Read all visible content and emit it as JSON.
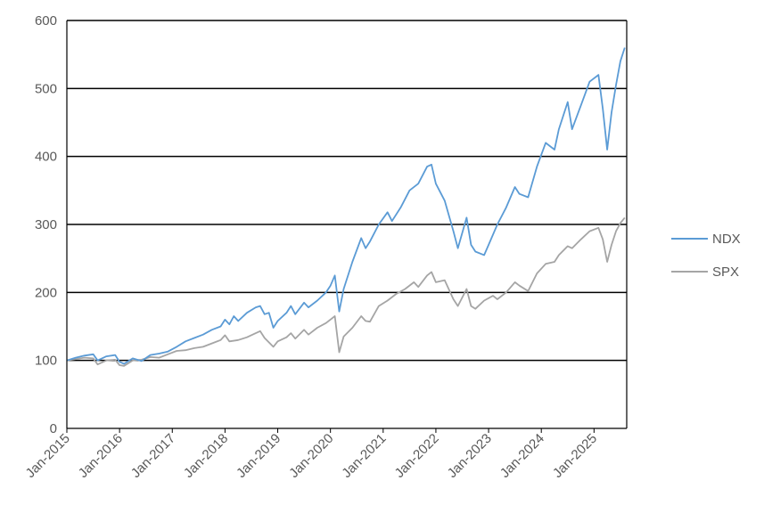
{
  "chart_data": {
    "type": "line",
    "title": "",
    "xlabel": "",
    "ylabel": "",
    "ylim": [
      0,
      600
    ],
    "xlim": [
      "2015-01",
      "2025-08"
    ],
    "grid": "horizontal",
    "legend_position": "right",
    "y_ticks": [
      "0",
      "100",
      "200",
      "300",
      "400",
      "500",
      "600"
    ],
    "x_ticks": [
      "Jan-2015",
      "Jan-2016",
      "Jan-2017",
      "Jan-2018",
      "Jan-2019",
      "Jan-2020",
      "Jan-2021",
      "Jan-2022",
      "Jan-2023",
      "Jan-2024",
      "Jan-2025"
    ],
    "x_tick_dates": [
      "2015-01",
      "2016-01",
      "2017-01",
      "2018-01",
      "2019-01",
      "2020-01",
      "2021-01",
      "2022-01",
      "2023-01",
      "2024-01",
      "2025-01"
    ],
    "series": [
      {
        "name": "NDX",
        "color": "#5B9BD5",
        "points": [
          [
            "2015-01",
            100
          ],
          [
            "2015-03",
            104
          ],
          [
            "2015-05",
            107
          ],
          [
            "2015-07",
            109
          ],
          [
            "2015-08",
            100
          ],
          [
            "2015-10",
            106
          ],
          [
            "2015-12",
            108
          ],
          [
            "2016-01",
            98
          ],
          [
            "2016-02",
            95
          ],
          [
            "2016-04",
            103
          ],
          [
            "2016-06",
            99
          ],
          [
            "2016-08",
            108
          ],
          [
            "2016-10",
            110
          ],
          [
            "2016-12",
            113
          ],
          [
            "2017-02",
            120
          ],
          [
            "2017-04",
            128
          ],
          [
            "2017-06",
            133
          ],
          [
            "2017-08",
            138
          ],
          [
            "2017-10",
            145
          ],
          [
            "2017-12",
            150
          ],
          [
            "2018-01",
            160
          ],
          [
            "2018-02",
            153
          ],
          [
            "2018-03",
            165
          ],
          [
            "2018-04",
            158
          ],
          [
            "2018-06",
            170
          ],
          [
            "2018-08",
            178
          ],
          [
            "2018-09",
            180
          ],
          [
            "2018-10",
            168
          ],
          [
            "2018-11",
            170
          ],
          [
            "2018-12",
            148
          ],
          [
            "2019-01",
            158
          ],
          [
            "2019-03",
            170
          ],
          [
            "2019-04",
            180
          ],
          [
            "2019-05",
            168
          ],
          [
            "2019-07",
            185
          ],
          [
            "2019-08",
            178
          ],
          [
            "2019-10",
            188
          ],
          [
            "2019-12",
            200
          ],
          [
            "2020-01",
            210
          ],
          [
            "2020-02",
            225
          ],
          [
            "2020-03",
            172
          ],
          [
            "2020-04",
            205
          ],
          [
            "2020-06",
            245
          ],
          [
            "2020-08",
            280
          ],
          [
            "2020-09",
            265
          ],
          [
            "2020-10",
            275
          ],
          [
            "2020-12",
            300
          ],
          [
            "2021-02",
            318
          ],
          [
            "2021-03",
            305
          ],
          [
            "2021-05",
            325
          ],
          [
            "2021-07",
            350
          ],
          [
            "2021-09",
            360
          ],
          [
            "2021-11",
            385
          ],
          [
            "2021-12",
            388
          ],
          [
            "2022-01",
            360
          ],
          [
            "2022-03",
            335
          ],
          [
            "2022-05",
            290
          ],
          [
            "2022-06",
            265
          ],
          [
            "2022-08",
            310
          ],
          [
            "2022-09",
            270
          ],
          [
            "2022-10",
            260
          ],
          [
            "2022-12",
            255
          ],
          [
            "2023-01",
            270
          ],
          [
            "2023-03",
            300
          ],
          [
            "2023-05",
            325
          ],
          [
            "2023-07",
            355
          ],
          [
            "2023-08",
            345
          ],
          [
            "2023-10",
            340
          ],
          [
            "2023-12",
            385
          ],
          [
            "2024-02",
            420
          ],
          [
            "2024-04",
            410
          ],
          [
            "2024-05",
            440
          ],
          [
            "2024-07",
            480
          ],
          [
            "2024-08",
            440
          ],
          [
            "2024-10",
            475
          ],
          [
            "2024-12",
            510
          ],
          [
            "2025-02",
            520
          ],
          [
            "2025-03",
            470
          ],
          [
            "2025-04",
            410
          ],
          [
            "2025-05",
            465
          ],
          [
            "2025-06",
            505
          ],
          [
            "2025-07",
            540
          ],
          [
            "2025-08",
            560
          ]
        ]
      },
      {
        "name": "SPX",
        "color": "#A5A5A5",
        "points": [
          [
            "2015-01",
            100
          ],
          [
            "2015-03",
            102
          ],
          [
            "2015-05",
            104
          ],
          [
            "2015-07",
            103
          ],
          [
            "2015-08",
            94
          ],
          [
            "2015-10",
            100
          ],
          [
            "2015-12",
            101
          ],
          [
            "2016-01",
            93
          ],
          [
            "2016-02",
            92
          ],
          [
            "2016-04",
            100
          ],
          [
            "2016-06",
            101
          ],
          [
            "2016-08",
            105
          ],
          [
            "2016-10",
            104
          ],
          [
            "2016-12",
            109
          ],
          [
            "2017-02",
            114
          ],
          [
            "2017-04",
            115
          ],
          [
            "2017-06",
            118
          ],
          [
            "2017-08",
            120
          ],
          [
            "2017-10",
            125
          ],
          [
            "2017-12",
            130
          ],
          [
            "2018-01",
            137
          ],
          [
            "2018-02",
            128
          ],
          [
            "2018-04",
            130
          ],
          [
            "2018-06",
            134
          ],
          [
            "2018-08",
            140
          ],
          [
            "2018-09",
            143
          ],
          [
            "2018-10",
            133
          ],
          [
            "2018-12",
            120
          ],
          [
            "2019-01",
            128
          ],
          [
            "2019-03",
            134
          ],
          [
            "2019-04",
            140
          ],
          [
            "2019-05",
            132
          ],
          [
            "2019-07",
            145
          ],
          [
            "2019-08",
            138
          ],
          [
            "2019-10",
            148
          ],
          [
            "2019-12",
            155
          ],
          [
            "2020-02",
            165
          ],
          [
            "2020-03",
            112
          ],
          [
            "2020-04",
            135
          ],
          [
            "2020-06",
            148
          ],
          [
            "2020-08",
            165
          ],
          [
            "2020-09",
            158
          ],
          [
            "2020-10",
            157
          ],
          [
            "2020-12",
            180
          ],
          [
            "2021-02",
            188
          ],
          [
            "2021-04",
            198
          ],
          [
            "2021-06",
            205
          ],
          [
            "2021-08",
            215
          ],
          [
            "2021-09",
            208
          ],
          [
            "2021-11",
            225
          ],
          [
            "2021-12",
            230
          ],
          [
            "2022-01",
            215
          ],
          [
            "2022-03",
            218
          ],
          [
            "2022-05",
            190
          ],
          [
            "2022-06",
            180
          ],
          [
            "2022-08",
            205
          ],
          [
            "2022-09",
            180
          ],
          [
            "2022-10",
            176
          ],
          [
            "2022-12",
            188
          ],
          [
            "2023-02",
            195
          ],
          [
            "2023-03",
            190
          ],
          [
            "2023-05",
            200
          ],
          [
            "2023-07",
            215
          ],
          [
            "2023-08",
            210
          ],
          [
            "2023-10",
            202
          ],
          [
            "2023-12",
            228
          ],
          [
            "2024-02",
            242
          ],
          [
            "2024-04",
            245
          ],
          [
            "2024-05",
            255
          ],
          [
            "2024-07",
            268
          ],
          [
            "2024-08",
            265
          ],
          [
            "2024-10",
            278
          ],
          [
            "2024-12",
            290
          ],
          [
            "2025-02",
            295
          ],
          [
            "2025-03",
            278
          ],
          [
            "2025-04",
            245
          ],
          [
            "2025-05",
            270
          ],
          [
            "2025-06",
            290
          ],
          [
            "2025-07",
            302
          ],
          [
            "2025-08",
            310
          ]
        ]
      }
    ]
  }
}
